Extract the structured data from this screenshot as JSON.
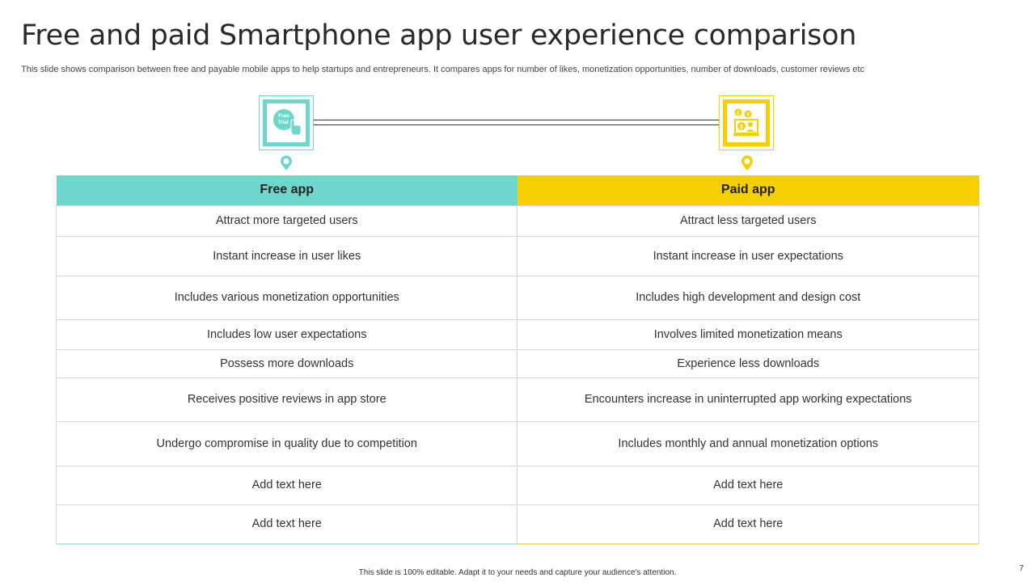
{
  "slide": {
    "title": "Free and paid Smartphone app user experience comparison",
    "subtitle": "This slide shows comparison between free and payable mobile apps to help startups and entrepreneurs. It compares apps for number of likes, monetization opportunities, number of downloads, customer reviews etc",
    "footer": "This slide is 100% editable.  Adapt it to your needs and capture your audience's attention.",
    "page_number": "7"
  },
  "icons": {
    "free": {
      "name": "free-trial-icon",
      "badge_text": "Free Trial",
      "color": "#6fd6cb"
    },
    "paid": {
      "name": "paid-app-icon",
      "color": "#f6cf00"
    }
  },
  "table": {
    "headers": {
      "free": "Free app",
      "paid": "Paid app"
    },
    "rows": [
      {
        "free": "Attract more targeted users",
        "paid": "Attract less targeted users"
      },
      {
        "free": "Instant increase in user likes",
        "paid": "Instant increase in user expectations"
      },
      {
        "free": "Includes various monetization opportunities",
        "paid": "Includes high development and design cost"
      },
      {
        "free": "Includes low user expectations",
        "paid": "Involves limited monetization means"
      },
      {
        "free": "Possess more downloads",
        "paid": "Experience less downloads"
      },
      {
        "free": "Receives positive reviews in app store",
        "paid": "Encounters increase in uninterrupted app working expectations"
      },
      {
        "free": "Undergo  compromise in quality due to competition",
        "paid": "Includes monthly and annual monetization options"
      },
      {
        "free": "Add text here",
        "paid": "Add text here"
      },
      {
        "free": "Add text here",
        "paid": "Add text here"
      }
    ]
  }
}
